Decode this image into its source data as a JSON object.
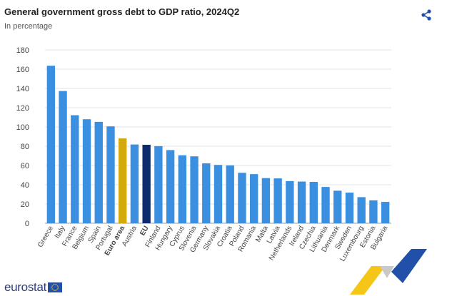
{
  "header": {
    "title": "General government gross debt to GDP ratio, 2024Q2",
    "subtitle": "In percentage",
    "share_icon": "share-icon"
  },
  "footer": {
    "logo_text": "eurostat",
    "logo_flag_icon": "eu-flag-icon"
  },
  "colors": {
    "country": "#3b8fe0",
    "euro_area": "#d4a90c",
    "eu": "#0e2a6e",
    "grid": "#e3e3e3",
    "axis_text": "#444444",
    "logo_blue": "#2d3c78",
    "swoosh_yellow": "#f5c518",
    "swoosh_blue": "#2150a8"
  },
  "chart_data": {
    "type": "bar",
    "title": "General government gross debt to GDP ratio, 2024Q2",
    "subtitle": "In percentage",
    "xlabel": "",
    "ylabel": "",
    "ylim": [
      0,
      180
    ],
    "yticks": [
      0,
      20,
      40,
      60,
      80,
      100,
      120,
      140,
      160,
      180
    ],
    "grid": true,
    "legend": "none",
    "categories": [
      "Greece",
      "Italy",
      "France",
      "Belgium",
      "Spain",
      "Portugal",
      "Euro area",
      "Austria",
      "EU",
      "Finland",
      "Hungary",
      "Cyprus",
      "Slovenia",
      "Germany",
      "Slovakia",
      "Croatia",
      "Poland",
      "Romania",
      "Malta",
      "Latvia",
      "Netherlands",
      "Ireland",
      "Czechia",
      "Lithuania",
      "Denmark",
      "Sweden",
      "Luxembourg",
      "Estonia",
      "Bulgaria"
    ],
    "values": [
      163.6,
      137.3,
      112.2,
      108.0,
      105.3,
      100.6,
      88.1,
      81.8,
      81.5,
      80.1,
      76.0,
      70.6,
      69.5,
      62.2,
      60.6,
      60.1,
      52.4,
      51.0,
      46.9,
      46.6,
      43.8,
      43.3,
      43.0,
      37.7,
      33.8,
      31.8,
      27.1,
      23.8,
      22.2
    ],
    "highlight": {
      "Euro area": "euro_area",
      "EU": "eu"
    },
    "bold_labels": [
      "Euro area",
      "EU"
    ]
  }
}
